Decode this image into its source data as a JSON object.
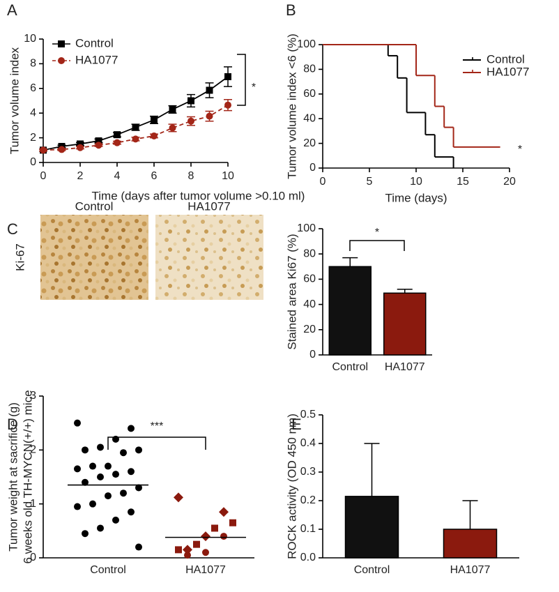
{
  "chart_data": [
    {
      "type": "line",
      "panel": "A",
      "ylabel": "Tumor volume index",
      "xlabel": "Time (days after tumor volume >0.10 ml)",
      "x": [
        0,
        1,
        2,
        3,
        4,
        5,
        6,
        7,
        8,
        9,
        10
      ],
      "xlim": [
        0,
        10
      ],
      "xticks": [
        0,
        2,
        4,
        6,
        8,
        10
      ],
      "ylim": [
        0,
        10
      ],
      "yticks": [
        0,
        2,
        4,
        6,
        8,
        10
      ],
      "legend": "top-left",
      "annotation": "*",
      "series": [
        {
          "name": "Control",
          "color": "#000000",
          "marker": "square",
          "dashed": false,
          "values": [
            1,
            1.3,
            1.5,
            1.75,
            2.25,
            2.85,
            3.45,
            4.3,
            5.0,
            5.85,
            6.95
          ],
          "errors": [
            0.08,
            0.1,
            0.12,
            0.15,
            0.18,
            0.25,
            0.3,
            0.3,
            0.5,
            0.6,
            0.8
          ]
        },
        {
          "name": "HA1077",
          "color": "#a32618",
          "marker": "circle",
          "dashed": true,
          "values": [
            1,
            1.05,
            1.2,
            1.4,
            1.6,
            1.9,
            2.15,
            2.8,
            3.35,
            3.75,
            4.65
          ],
          "errors": [
            0.08,
            0.08,
            0.1,
            0.1,
            0.12,
            0.15,
            0.15,
            0.3,
            0.35,
            0.4,
            0.45
          ]
        }
      ]
    },
    {
      "type": "step",
      "panel": "B",
      "ylabel": "Tumor volume index <6 (%)",
      "xlabel": "Time (days)",
      "xlim": [
        0,
        20
      ],
      "xticks": [
        0,
        5,
        10,
        15,
        20
      ],
      "ylim": [
        0,
        100
      ],
      "yticks": [
        0,
        20,
        40,
        60,
        80,
        100
      ],
      "legend": "top-right",
      "annotation": "*",
      "series": [
        {
          "name": "Control",
          "color": "#000000",
          "x": [
            0,
            7,
            8,
            9,
            11,
            12,
            14
          ],
          "values": [
            100,
            91,
            73,
            45,
            27,
            9,
            0
          ]
        },
        {
          "name": "HA1077",
          "color": "#a32618",
          "x": [
            0,
            10,
            12,
            13,
            14,
            19
          ],
          "values": [
            100,
            75,
            50,
            33,
            17,
            17
          ]
        }
      ]
    },
    {
      "type": "bar",
      "panel": "C",
      "ylabel": "Stained area Ki67 (%)",
      "image_labels": [
        "Control",
        "HA1077"
      ],
      "row_label": "Ki-67",
      "categories": [
        "Control",
        "HA1077"
      ],
      "values": [
        70,
        49
      ],
      "errors": [
        7,
        3
      ],
      "colors": [
        "#111111",
        "#8b1a0e"
      ],
      "ylim": [
        0,
        100
      ],
      "yticks": [
        0,
        20,
        40,
        60,
        80,
        100
      ],
      "annotation": "*"
    },
    {
      "type": "dotplot",
      "panel": "D",
      "ylabel": [
        "Tumor weight at sacrifice (g)",
        "6 weeks old TH-MYCN(+/+) mice"
      ],
      "categories": [
        "Control",
        "HA1077"
      ],
      "ylim": [
        0,
        3
      ],
      "yticks": [
        0,
        1,
        2,
        3
      ],
      "annotation": "***",
      "means": [
        1.35,
        0.38
      ],
      "groups": [
        {
          "color": "#000000",
          "markers": [
            "circle"
          ],
          "values": [
            2.5,
            2.4,
            2.2,
            2.05,
            2.0,
            2.0,
            1.95,
            1.7,
            1.7,
            1.65,
            1.6,
            1.55,
            1.5,
            1.4,
            1.3,
            1.2,
            1.15,
            1.0,
            0.95,
            0.85,
            0.7,
            0.55,
            0.45,
            0.2
          ]
        },
        {
          "color": "#8b1a0e",
          "markers": [
            "diamond",
            "diamond",
            "diamond",
            "diamond",
            "square",
            "square",
            "square",
            "square",
            "circle",
            "circle",
            "circle"
          ],
          "values": [
            1.12,
            0.85,
            0.4,
            0.15,
            0.65,
            0.55,
            0.25,
            0.15,
            0.4,
            0.1,
            0.05
          ]
        }
      ]
    },
    {
      "type": "bar",
      "panel": "E",
      "ylabel": "ROCK activity (OD 450 nm)",
      "categories": [
        "Control",
        "HA1077"
      ],
      "values": [
        0.215,
        0.1
      ],
      "errors": [
        0.185,
        0.1
      ],
      "colors": [
        "#111111",
        "#8b1a0e"
      ],
      "ylim": [
        0,
        0.5
      ],
      "yticks": [
        {
          "value": 0,
          "label": "0.0"
        },
        0.1,
        0.2,
        0.3,
        0.4,
        0.5
      ]
    }
  ]
}
